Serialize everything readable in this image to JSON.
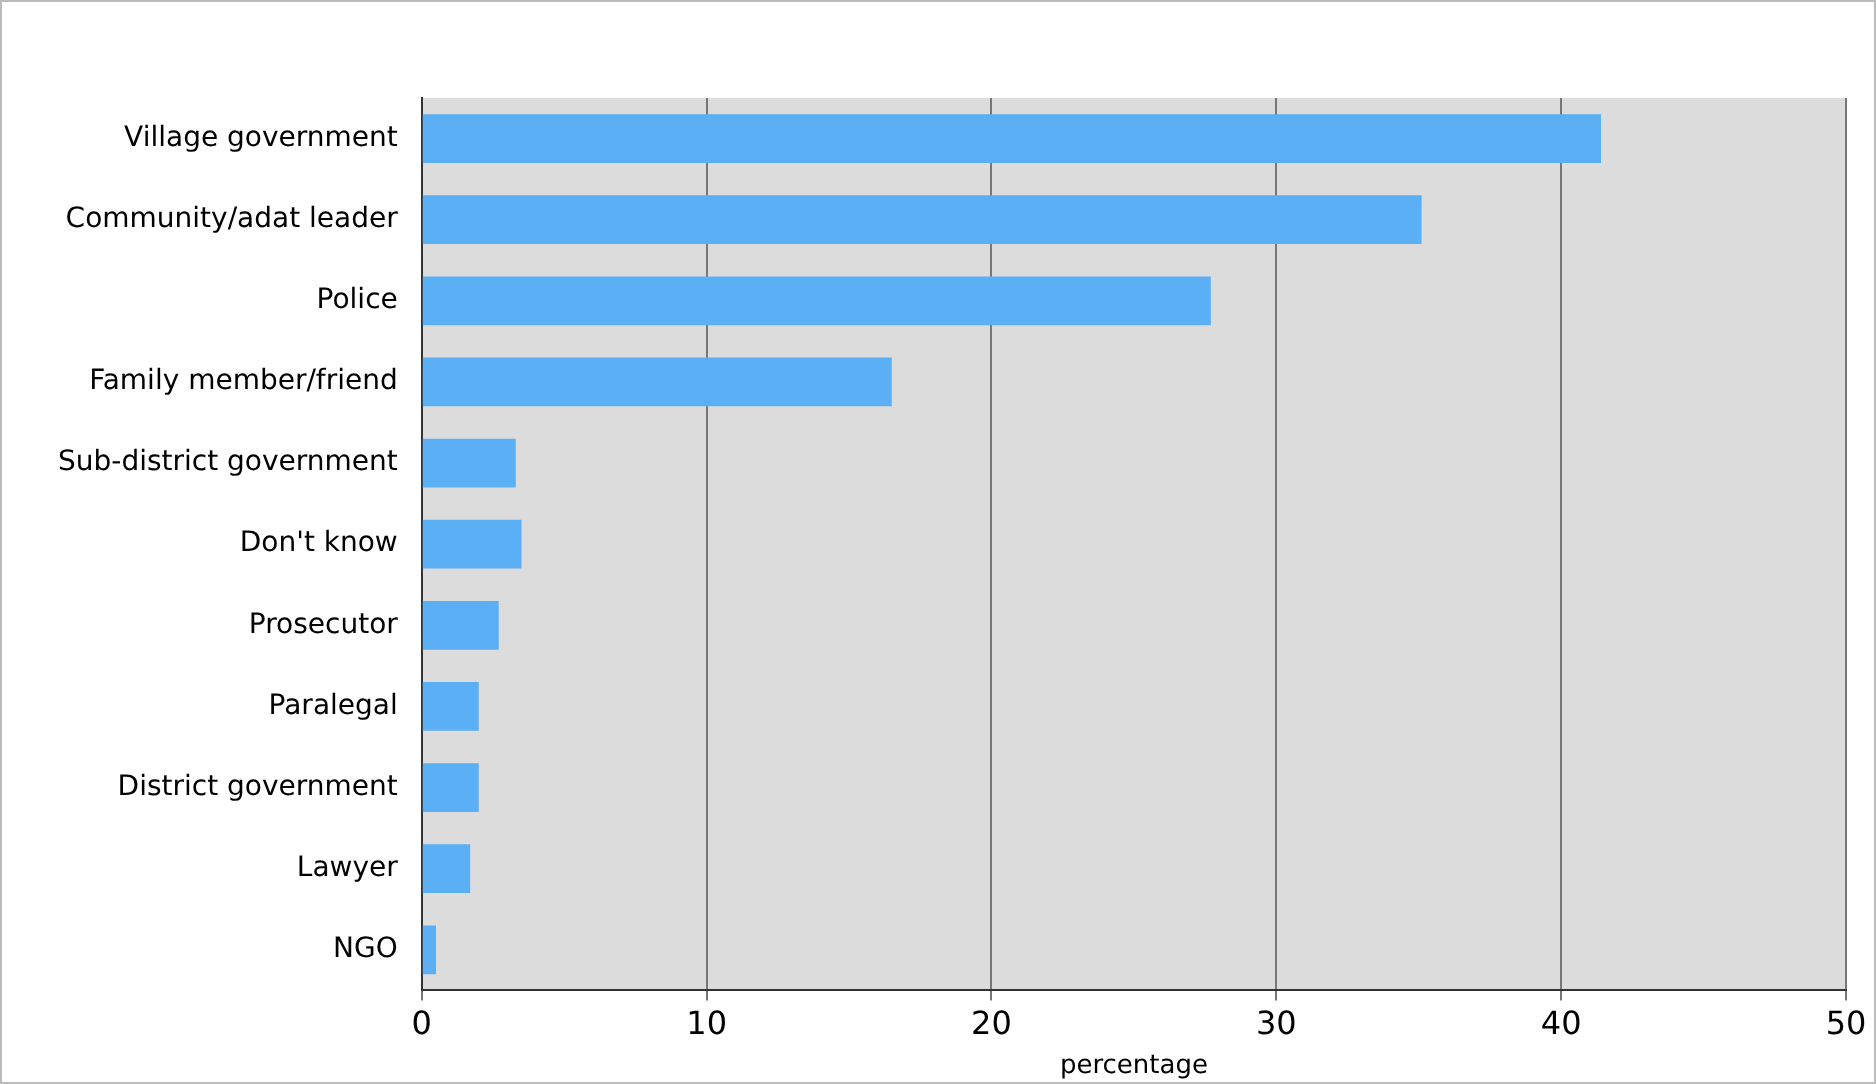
{
  "chart_data": {
    "type": "bar",
    "orientation": "horizontal",
    "xlabel": "percentage",
    "categories": [
      "Village government",
      "Community/adat leader",
      "Police",
      "Family member/friend",
      "Sub-district government",
      "Don't know",
      "Prosecutor",
      "Paralegal",
      "District government",
      "Lawyer",
      "NGO"
    ],
    "values": [
      41.4,
      35.1,
      27.7,
      16.5,
      3.3,
      3.5,
      2.7,
      2.0,
      2.0,
      1.7,
      0.5
    ],
    "color": "#5aaff5",
    "xlim": [
      0,
      50
    ],
    "xticks": [
      0,
      10,
      20,
      30,
      40,
      50
    ],
    "grid": "x",
    "legend": false
  }
}
